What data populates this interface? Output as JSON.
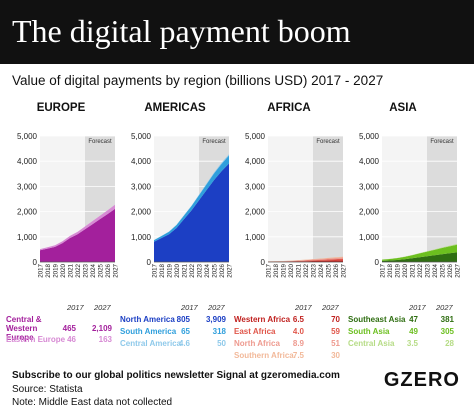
{
  "header": {
    "title": "The digital payment boom",
    "subtitle": "Value of digital payments by region (billions USD) 2017 - 2027"
  },
  "chart_data": [
    {
      "type": "area",
      "title": "EUROPE",
      "forecast_label": "Forecast",
      "forecast_start": "2023",
      "x": [
        "2017",
        "2018",
        "2019",
        "2020",
        "2021",
        "2022",
        "2023",
        "2024",
        "2025",
        "2026",
        "2027"
      ],
      "yticks": [
        "0",
        "1,000",
        "2,000",
        "3,000",
        "4,000",
        "5,000"
      ],
      "ylim": [
        0,
        5000
      ],
      "year_headers": [
        "2017",
        "2027"
      ],
      "series": [
        {
          "name": "Central & Western Europe",
          "color": "#a3209c",
          "values": [
            465,
            530,
            600,
            750,
            950,
            1100,
            1300,
            1500,
            1700,
            1900,
            2109
          ],
          "v2017": "465",
          "v2027": "2,109"
        },
        {
          "name": "Eastern Europe",
          "color": "#d78ad4",
          "values": [
            46,
            55,
            65,
            75,
            85,
            95,
            110,
            120,
            135,
            150,
            163
          ],
          "v2017": "46",
          "v2027": "163"
        }
      ]
    },
    {
      "type": "area",
      "title": "AMERICAS",
      "forecast_label": "Forecast",
      "forecast_start": "2023",
      "x": [
        "2017",
        "2018",
        "2019",
        "2020",
        "2021",
        "2022",
        "2023",
        "2024",
        "2025",
        "2026",
        "2027"
      ],
      "yticks": [
        "0",
        "1,000",
        "2,000",
        "3,000",
        "4,000",
        "5,000"
      ],
      "ylim": [
        0,
        5000
      ],
      "year_headers": [
        "2017",
        "2027"
      ],
      "series": [
        {
          "name": "North America",
          "color": "#1c3fc4",
          "values": [
            805,
            950,
            1100,
            1350,
            1700,
            2050,
            2450,
            2850,
            3250,
            3600,
            3909
          ],
          "v2017": "805",
          "v2027": "3,909"
        },
        {
          "name": "South America",
          "color": "#2f9fdc",
          "values": [
            65,
            80,
            100,
            120,
            145,
            170,
            200,
            230,
            260,
            290,
            318
          ],
          "v2017": "65",
          "v2027": "318"
        },
        {
          "name": "Central America",
          "color": "#8ec9ea",
          "values": [
            4.6,
            6,
            8,
            10,
            14,
            18,
            24,
            30,
            37,
            44,
            50
          ],
          "v2017": "4.6",
          "v2027": "50"
        }
      ]
    },
    {
      "type": "area",
      "title": "AFRICA",
      "forecast_label": "Forecast",
      "forecast_start": "2023",
      "x": [
        "2017",
        "2018",
        "2019",
        "2020",
        "2021",
        "2022",
        "2023",
        "2024",
        "2025",
        "2026",
        "2027"
      ],
      "yticks": [
        "0",
        "1,000",
        "2,000",
        "3,000",
        "4,000",
        "5,000"
      ],
      "ylim": [
        0,
        5000
      ],
      "year_headers": [
        "2017",
        "2027"
      ],
      "series": [
        {
          "name": "Western Africa",
          "color": "#c0211f",
          "values": [
            6.5,
            9,
            12,
            17,
            23,
            30,
            38,
            46,
            54,
            62,
            70
          ],
          "v2017": "6.5",
          "v2027": "70"
        },
        {
          "name": "East Africa",
          "color": "#e0564a",
          "values": [
            4.0,
            6,
            8,
            12,
            17,
            23,
            30,
            37,
            44,
            52,
            59
          ],
          "v2017": "4.0",
          "v2027": "59"
        },
        {
          "name": "North Africa",
          "color": "#ee9a8f",
          "values": [
            8.9,
            10,
            12,
            15,
            19,
            24,
            29,
            35,
            40,
            46,
            51
          ],
          "v2017": "8.9",
          "v2027": "51"
        },
        {
          "name": "Southern Africa",
          "color": "#f2b99a",
          "values": [
            7.5,
            8,
            10,
            12,
            14,
            16,
            19,
            22,
            25,
            27,
            30
          ],
          "v2017": "7.5",
          "v2027": "30"
        }
      ]
    },
    {
      "type": "area",
      "title": "ASIA",
      "forecast_label": "Forecast",
      "forecast_start": "2023",
      "x": [
        "2017",
        "2018",
        "2019",
        "2020",
        "2021",
        "2022",
        "2023",
        "2024",
        "2025",
        "2026",
        "2027"
      ],
      "yticks": [
        "0",
        "1,000",
        "2,000",
        "3,000",
        "4,000",
        "5,000"
      ],
      "ylim": [
        0,
        5000
      ],
      "year_headers": [
        "2017",
        "2027"
      ],
      "series": [
        {
          "name": "Southeast Asia",
          "color": "#2f6e12",
          "values": [
            47,
            60,
            80,
            110,
            150,
            190,
            230,
            270,
            310,
            345,
            381
          ],
          "v2017": "47",
          "v2027": "381"
        },
        {
          "name": "South Asia",
          "color": "#6cbf1f",
          "values": [
            49,
            60,
            75,
            95,
            120,
            150,
            180,
            210,
            245,
            275,
            305
          ],
          "v2017": "49",
          "v2027": "305"
        },
        {
          "name": "Central Asia",
          "color": "#b6dc86",
          "values": [
            3.5,
            4.5,
            6,
            8,
            10,
            13,
            16,
            19,
            22,
            25,
            28
          ],
          "v2017": "3.5",
          "v2027": "28"
        }
      ]
    }
  ],
  "footer": {
    "subscribe": "Subscribe to our global politics newsletter Signal at gzeromedia.com",
    "source": "Source: Statista",
    "note": "Note: Middle East data not collected",
    "logo": "GZERO"
  }
}
